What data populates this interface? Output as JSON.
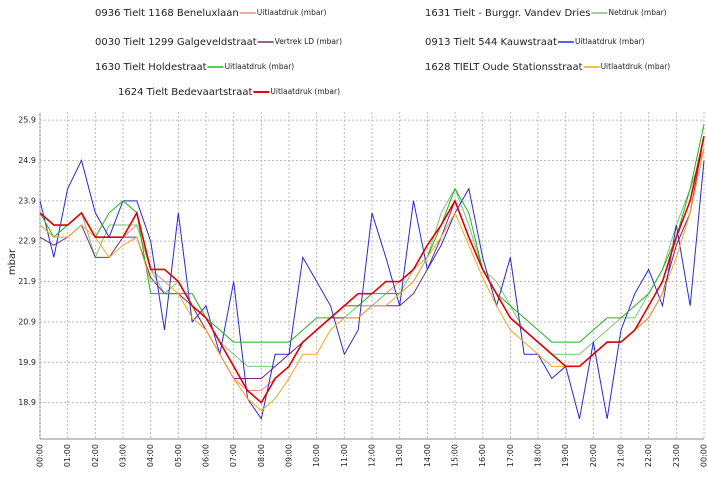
{
  "chart_data": {
    "type": "line",
    "ylabel": "mbar",
    "categories": [
      "00:00",
      null,
      "01:00",
      null,
      "02:00",
      null,
      "03:00",
      null,
      "04:00",
      null,
      "05:00",
      null,
      "06:00",
      null,
      "07:00",
      null,
      "08:00",
      null,
      "09:00",
      null,
      "10:00",
      null,
      "11:00",
      null,
      "12:00",
      null,
      "13:00",
      null,
      "14:00",
      null,
      "15:00",
      null,
      "16:00",
      null,
      "17:00",
      null,
      "18:00",
      null,
      "19:00",
      null,
      "20:00",
      null,
      "21:00",
      null,
      "22:00",
      null,
      "23:00",
      null,
      "00:00"
    ],
    "ylim": [
      18.0,
      26.1
    ],
    "yticks": [
      18.9,
      19.9,
      20.9,
      21.9,
      22.9,
      23.9,
      24.9,
      25.9
    ],
    "grid": true,
    "series": [
      {
        "name": "0936 Tielt 1168 Beneluxlaan",
        "unit": "Uitlaatdruk (mbar)",
        "color": "#f08a8a",
        "values": [
          23.6,
          23.3,
          23.3,
          23.6,
          23.0,
          23.0,
          23.0,
          23.3,
          22.2,
          21.9,
          21.9,
          21.3,
          20.7,
          20.1,
          19.5,
          19.2,
          19.2,
          19.5,
          19.8,
          20.4,
          20.7,
          21.0,
          21.3,
          21.3,
          21.3,
          21.6,
          21.9,
          22.2,
          22.8,
          23.3,
          23.9,
          23.0,
          22.2,
          21.6,
          21.0,
          20.7,
          20.4,
          20.1,
          19.8,
          19.8,
          20.1,
          20.4,
          20.4,
          20.7,
          21.0,
          21.6,
          22.8,
          23.6,
          25.2
        ]
      },
      {
        "name": "1631 Tielt - Burggr. Vandev Dries",
        "unit": "Netdruk (mbar)",
        "color": "#7cc47c",
        "values": [
          23.3,
          23.0,
          23.3,
          23.6,
          22.5,
          23.3,
          23.3,
          23.3,
          22.2,
          21.6,
          21.9,
          21.3,
          21.0,
          20.4,
          20.1,
          19.8,
          19.8,
          19.8,
          20.1,
          20.4,
          20.7,
          21.0,
          21.0,
          21.3,
          21.3,
          21.6,
          21.6,
          22.2,
          22.5,
          23.6,
          24.2,
          23.3,
          22.2,
          21.9,
          21.3,
          20.7,
          20.4,
          20.1,
          20.1,
          20.1,
          20.4,
          20.7,
          21.0,
          21.0,
          21.6,
          22.2,
          23.3,
          24.2,
          25.2
        ]
      },
      {
        "name": "0030 Tielt 1299 Galgeveldstraat",
        "unit": "Vertrek LD (mbar)",
        "color": "#7a2a7a",
        "values": [
          23.0,
          22.8,
          23.0,
          23.3,
          22.5,
          22.5,
          23.0,
          23.0,
          22.0,
          21.6,
          21.6,
          21.3,
          20.7,
          20.1,
          19.5,
          19.5,
          19.5,
          19.8,
          20.1,
          20.4,
          20.7,
          21.0,
          21.0,
          21.0,
          21.3,
          21.3,
          21.3,
          21.6,
          22.2,
          23.0,
          23.9,
          23.0,
          22.2,
          21.6,
          21.0,
          20.7,
          20.4,
          20.1,
          19.8,
          19.8,
          20.1,
          20.4,
          20.4,
          20.7,
          21.0,
          21.6,
          22.8,
          23.6,
          25.5
        ]
      },
      {
        "name": "0913 Tielt 544 Kauwstraat",
        "unit": "Uitlaatdruk (mbar)",
        "color": "#2a2ad0",
        "values": [
          23.9,
          22.5,
          24.2,
          24.9,
          23.6,
          23.0,
          23.9,
          23.9,
          22.9,
          20.7,
          23.6,
          20.9,
          21.3,
          20.1,
          21.9,
          19.0,
          18.5,
          20.1,
          20.1,
          22.5,
          21.9,
          21.3,
          20.1,
          20.7,
          23.6,
          22.5,
          21.3,
          23.9,
          22.2,
          22.8,
          23.6,
          24.2,
          22.5,
          21.3,
          22.5,
          20.1,
          20.1,
          19.5,
          19.8,
          18.5,
          20.4,
          18.5,
          20.7,
          21.6,
          22.2,
          21.3,
          23.3,
          21.3,
          24.9
        ]
      },
      {
        "name": "1630 Tielt Holdestraat",
        "unit": "Uitlaatdruk (mbar)",
        "color": "#22b422",
        "values": [
          23.6,
          23.0,
          23.3,
          23.6,
          23.0,
          23.6,
          23.9,
          23.6,
          21.6,
          21.6,
          21.6,
          21.6,
          21.0,
          20.7,
          20.4,
          20.4,
          20.4,
          20.4,
          20.4,
          20.7,
          21.0,
          21.0,
          21.3,
          21.3,
          21.6,
          21.6,
          21.6,
          21.9,
          22.5,
          23.3,
          24.2,
          23.6,
          22.2,
          21.6,
          21.3,
          21.0,
          20.7,
          20.4,
          20.4,
          20.4,
          20.7,
          21.0,
          21.0,
          21.3,
          21.6,
          22.2,
          23.0,
          24.2,
          25.8
        ]
      },
      {
        "name": "1628 TIELT Oude Stationsstraat",
        "unit": "Uitlaatdruk (mbar)",
        "color": "#f5a623",
        "values": [
          23.3,
          23.0,
          23.0,
          23.3,
          23.0,
          22.5,
          22.8,
          23.0,
          21.9,
          21.9,
          21.6,
          21.0,
          20.7,
          20.1,
          19.5,
          19.0,
          18.7,
          19.0,
          19.5,
          20.1,
          20.1,
          20.7,
          21.0,
          21.0,
          21.3,
          21.3,
          21.6,
          21.9,
          22.5,
          23.0,
          23.6,
          22.8,
          22.0,
          21.3,
          20.7,
          20.4,
          20.1,
          19.8,
          19.8,
          19.8,
          20.1,
          20.4,
          20.4,
          20.7,
          21.0,
          21.6,
          22.5,
          23.6,
          25.2
        ]
      },
      {
        "name": "1624 Tielt Bedevaartstraat",
        "unit": "Uitlaatdruk (mbar)",
        "color": "#e00000",
        "values": [
          23.6,
          23.3,
          23.3,
          23.6,
          23.0,
          23.0,
          23.0,
          23.6,
          22.2,
          22.2,
          21.9,
          21.3,
          21.0,
          20.4,
          19.8,
          19.2,
          18.9,
          19.5,
          19.8,
          20.4,
          20.7,
          21.0,
          21.3,
          21.6,
          21.6,
          21.9,
          21.9,
          22.2,
          22.8,
          23.3,
          23.9,
          23.0,
          22.2,
          21.6,
          21.0,
          20.7,
          20.4,
          20.1,
          19.8,
          19.8,
          20.1,
          20.4,
          20.4,
          20.7,
          21.3,
          21.9,
          23.0,
          23.9,
          25.5
        ]
      }
    ]
  }
}
